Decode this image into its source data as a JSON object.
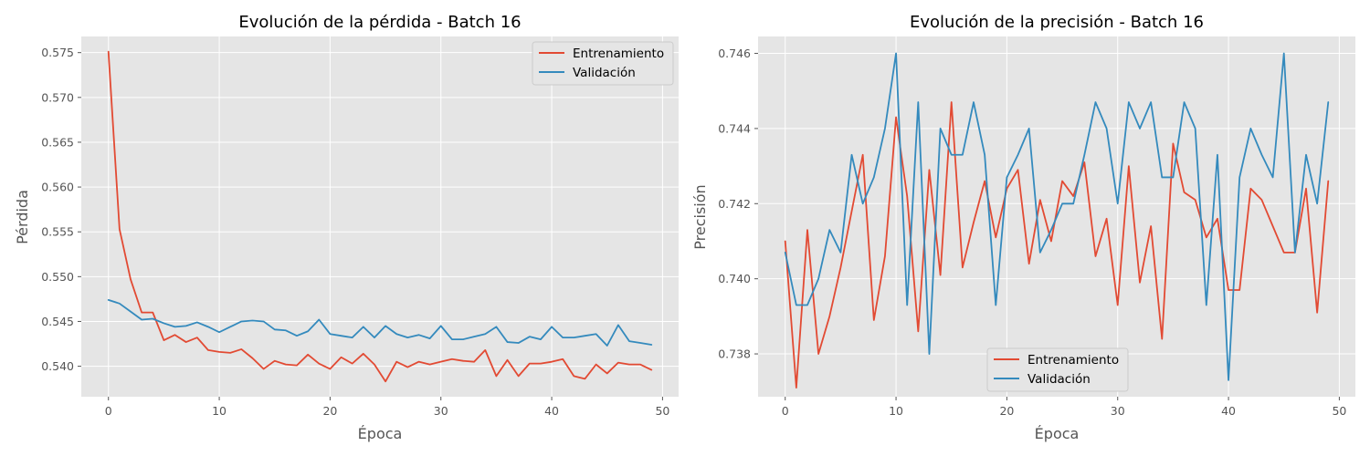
{
  "colors": {
    "figure_bg": "#ffffff",
    "axes_bg": "#e5e5e5",
    "grid": "#ffffff",
    "training": "#e24a33",
    "validation": "#348abd"
  },
  "chart_data": [
    {
      "type": "line",
      "title": "Evolución de la pérdida - Batch 16",
      "xlabel": "Época",
      "ylabel": "Pérdida",
      "xlim": [
        -2.45,
        51.45
      ],
      "ylim": [
        0.5366,
        0.5768
      ],
      "xticks": [
        0,
        10,
        20,
        30,
        40,
        50
      ],
      "yticks": [
        0.54,
        0.545,
        0.55,
        0.555,
        0.56,
        0.565,
        0.57,
        0.575
      ],
      "grid": true,
      "legend": "top-right",
      "x": [
        0,
        1,
        2,
        3,
        4,
        5,
        6,
        7,
        8,
        9,
        10,
        11,
        12,
        13,
        14,
        15,
        16,
        17,
        18,
        19,
        20,
        21,
        22,
        23,
        24,
        25,
        26,
        27,
        28,
        29,
        30,
        31,
        32,
        33,
        34,
        35,
        36,
        37,
        38,
        39,
        40,
        41,
        42,
        43,
        44,
        45,
        46,
        47,
        48,
        49
      ],
      "series": [
        {
          "name": "Entrenamiento",
          "values": [
            0.5751,
            0.5553,
            0.5497,
            0.546,
            0.546,
            0.5429,
            0.5435,
            0.5427,
            0.5432,
            0.5418,
            0.5416,
            0.5415,
            0.5419,
            0.5409,
            0.5397,
            0.5406,
            0.5402,
            0.5401,
            0.5413,
            0.5403,
            0.5397,
            0.541,
            0.5403,
            0.5414,
            0.5402,
            0.5383,
            0.5405,
            0.5399,
            0.5405,
            0.5402,
            0.5405,
            0.5408,
            0.5406,
            0.5405,
            0.5418,
            0.5389,
            0.5407,
            0.5389,
            0.5403,
            0.5403,
            0.5405,
            0.5408,
            0.5389,
            0.5386,
            0.5402,
            0.5392,
            0.5404,
            0.5402,
            0.5402,
            0.5396
          ]
        },
        {
          "name": "Validación",
          "values": [
            0.5474,
            0.547,
            0.5461,
            0.5452,
            0.5453,
            0.5448,
            0.5444,
            0.5445,
            0.5449,
            0.5444,
            0.5438,
            0.5444,
            0.545,
            0.5451,
            0.545,
            0.5441,
            0.544,
            0.5434,
            0.5439,
            0.5452,
            0.5436,
            0.5434,
            0.5432,
            0.5444,
            0.5432,
            0.5445,
            0.5436,
            0.5432,
            0.5435,
            0.5431,
            0.5445,
            0.543,
            0.543,
            0.5433,
            0.5436,
            0.5444,
            0.5427,
            0.5426,
            0.5433,
            0.543,
            0.5444,
            0.5432,
            0.5432,
            0.5434,
            0.5436,
            0.5423,
            0.5446,
            0.5428,
            0.5426,
            0.5424
          ]
        }
      ]
    },
    {
      "type": "line",
      "title": "Evolución de la precisión - Batch 16",
      "xlabel": "Época",
      "ylabel": "Precisión",
      "xlim": [
        -2.45,
        51.45
      ],
      "ylim": [
        0.73686,
        0.74645
      ],
      "xticks": [
        0,
        10,
        20,
        30,
        40,
        50
      ],
      "yticks": [
        0.738,
        0.74,
        0.742,
        0.744,
        0.746
      ],
      "grid": true,
      "legend": "bottom-center",
      "x": [
        0,
        1,
        2,
        3,
        4,
        5,
        6,
        7,
        8,
        9,
        10,
        11,
        12,
        13,
        14,
        15,
        16,
        17,
        18,
        19,
        20,
        21,
        22,
        23,
        24,
        25,
        26,
        27,
        28,
        29,
        30,
        31,
        32,
        33,
        34,
        35,
        36,
        37,
        38,
        39,
        40,
        41,
        42,
        43,
        44,
        45,
        46,
        47,
        48,
        49
      ],
      "series": [
        {
          "name": "Entrenamiento",
          "values": [
            0.741,
            0.7371,
            0.7413,
            0.738,
            0.739,
            0.7403,
            0.7418,
            0.7433,
            0.7389,
            0.7406,
            0.7443,
            0.7422,
            0.7386,
            0.7429,
            0.7401,
            0.7447,
            0.7403,
            0.7415,
            0.7426,
            0.7411,
            0.7424,
            0.7429,
            0.7404,
            0.7421,
            0.741,
            0.7426,
            0.7422,
            0.7431,
            0.7406,
            0.7416,
            0.7393,
            0.743,
            0.7399,
            0.7414,
            0.7384,
            0.7436,
            0.7423,
            0.7421,
            0.7411,
            0.7416,
            0.7397,
            0.7397,
            0.7424,
            0.7421,
            0.7414,
            0.7407,
            0.7407,
            0.7424,
            0.7391,
            0.7426
          ]
        },
        {
          "name": "Validación",
          "values": [
            0.7407,
            0.7393,
            0.7393,
            0.74,
            0.7413,
            0.7407,
            0.7433,
            0.742,
            0.7427,
            0.744,
            0.746,
            0.7393,
            0.7447,
            0.738,
            0.744,
            0.7433,
            0.7433,
            0.7447,
            0.7433,
            0.7393,
            0.7427,
            0.7433,
            0.744,
            0.7407,
            0.7413,
            0.742,
            0.742,
            0.7433,
            0.7447,
            0.744,
            0.742,
            0.7447,
            0.744,
            0.7447,
            0.7427,
            0.7427,
            0.7447,
            0.744,
            0.7393,
            0.7433,
            0.7373,
            0.7427,
            0.744,
            0.7433,
            0.7427,
            0.746,
            0.7407,
            0.7433,
            0.742,
            0.7447
          ]
        }
      ]
    }
  ]
}
